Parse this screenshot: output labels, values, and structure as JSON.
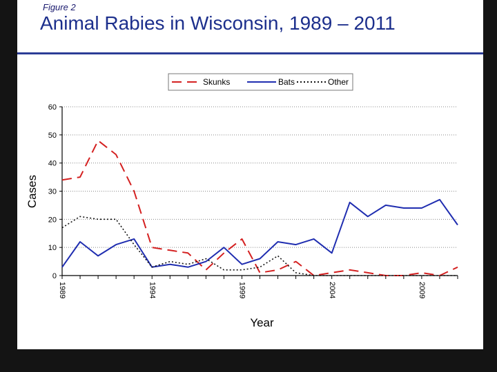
{
  "slide": {
    "figure_label": "Figure 2",
    "title": "Animal Rabies in Wisconsin, 1989 – 2011"
  },
  "chart_data": {
    "type": "line",
    "xlabel": "Year",
    "ylabel": "Cases",
    "x": [
      1989,
      1990,
      1991,
      1992,
      1993,
      1994,
      1995,
      1996,
      1997,
      1998,
      1999,
      2000,
      2001,
      2002,
      2003,
      2004,
      2005,
      2006,
      2007,
      2008,
      2009,
      2010,
      2011
    ],
    "xticks": [
      "1989",
      "1994",
      "1999",
      "2004",
      "2009"
    ],
    "yticks": [
      "0",
      "10",
      "20",
      "30",
      "40",
      "50",
      "60"
    ],
    "ylim": [
      0,
      60
    ],
    "xlim": [
      1989,
      2011
    ],
    "grid": true,
    "legend_position": "top",
    "series": [
      {
        "name": "Skunks",
        "color": "#d42020",
        "dash": "long-dash",
        "values": [
          34,
          35,
          48,
          43,
          30,
          10,
          9,
          8,
          2,
          8,
          13,
          1,
          2,
          5,
          0,
          1,
          2,
          1,
          0,
          0,
          1,
          0,
          3
        ]
      },
      {
        "name": "Bats",
        "color": "#1f2db0",
        "dash": "solid",
        "values": [
          3,
          12,
          7,
          11,
          13,
          3,
          4,
          3,
          5,
          10,
          4,
          6,
          12,
          11,
          13,
          8,
          26,
          21,
          25,
          24,
          24,
          27,
          18
        ]
      },
      {
        "name": "Other",
        "color": "#111111",
        "dash": "dotted",
        "values": [
          17,
          21,
          20,
          20,
          11,
          3,
          5,
          4,
          6,
          2,
          2,
          3,
          7,
          1,
          0,
          0,
          0,
          0,
          0,
          0,
          0,
          0,
          0
        ]
      }
    ]
  }
}
